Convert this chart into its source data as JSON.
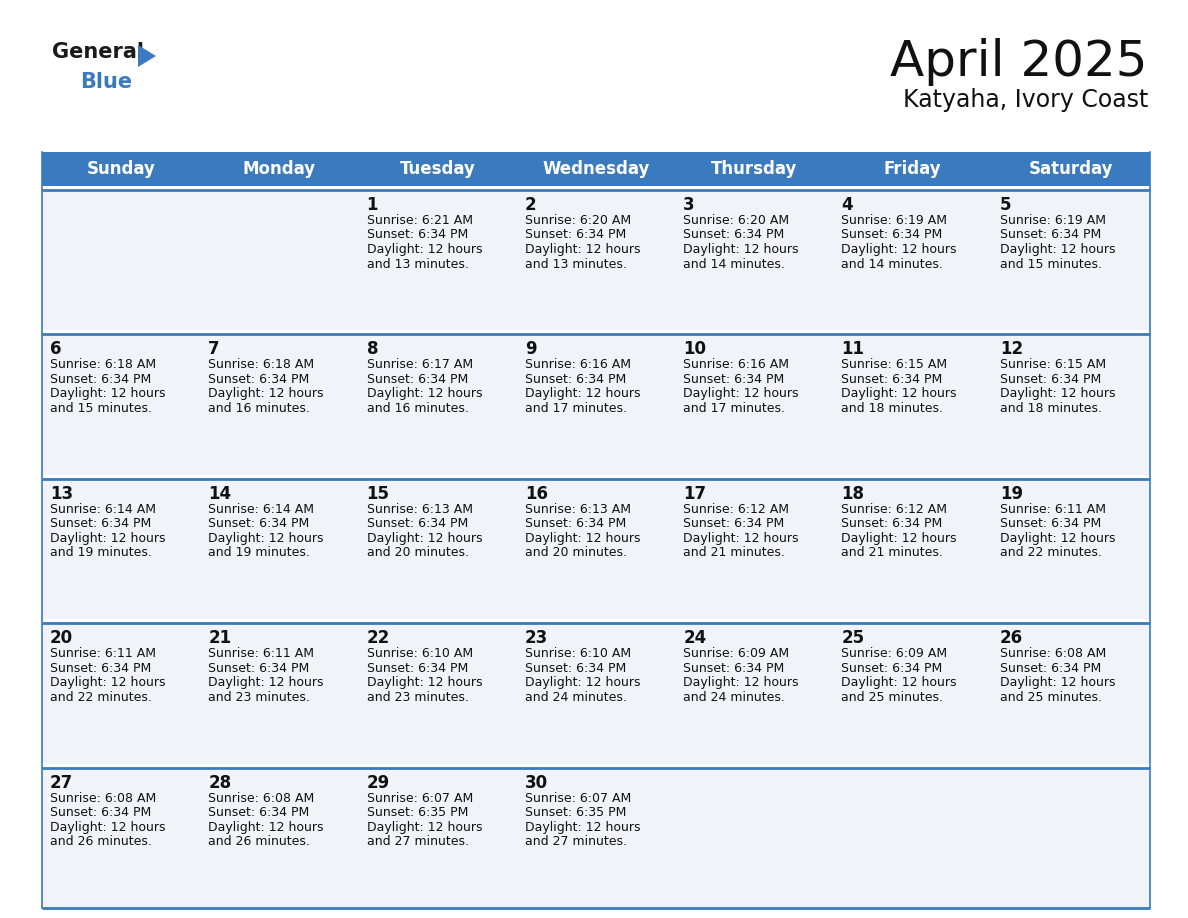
{
  "title": "April 2025",
  "subtitle": "Katyaha, Ivory Coast",
  "header_bg": "#3a7abf",
  "header_text_color": "#ffffff",
  "cell_bg": "#f0f3f7",
  "border_color": "#3a7abf",
  "day_names": [
    "Sunday",
    "Monday",
    "Tuesday",
    "Wednesday",
    "Thursday",
    "Friday",
    "Saturday"
  ],
  "weeks": [
    [
      {
        "day": "",
        "sunrise": "",
        "sunset": "",
        "daylight": ""
      },
      {
        "day": "",
        "sunrise": "",
        "sunset": "",
        "daylight": ""
      },
      {
        "day": "1",
        "sunrise": "6:21 AM",
        "sunset": "6:34 PM",
        "daylight": "12 hours and 13 minutes."
      },
      {
        "day": "2",
        "sunrise": "6:20 AM",
        "sunset": "6:34 PM",
        "daylight": "12 hours and 13 minutes."
      },
      {
        "day": "3",
        "sunrise": "6:20 AM",
        "sunset": "6:34 PM",
        "daylight": "12 hours and 14 minutes."
      },
      {
        "day": "4",
        "sunrise": "6:19 AM",
        "sunset": "6:34 PM",
        "daylight": "12 hours and 14 minutes."
      },
      {
        "day": "5",
        "sunrise": "6:19 AM",
        "sunset": "6:34 PM",
        "daylight": "12 hours and 15 minutes."
      }
    ],
    [
      {
        "day": "6",
        "sunrise": "6:18 AM",
        "sunset": "6:34 PM",
        "daylight": "12 hours and 15 minutes."
      },
      {
        "day": "7",
        "sunrise": "6:18 AM",
        "sunset": "6:34 PM",
        "daylight": "12 hours and 16 minutes."
      },
      {
        "day": "8",
        "sunrise": "6:17 AM",
        "sunset": "6:34 PM",
        "daylight": "12 hours and 16 minutes."
      },
      {
        "day": "9",
        "sunrise": "6:16 AM",
        "sunset": "6:34 PM",
        "daylight": "12 hours and 17 minutes."
      },
      {
        "day": "10",
        "sunrise": "6:16 AM",
        "sunset": "6:34 PM",
        "daylight": "12 hours and 17 minutes."
      },
      {
        "day": "11",
        "sunrise": "6:15 AM",
        "sunset": "6:34 PM",
        "daylight": "12 hours and 18 minutes."
      },
      {
        "day": "12",
        "sunrise": "6:15 AM",
        "sunset": "6:34 PM",
        "daylight": "12 hours and 18 minutes."
      }
    ],
    [
      {
        "day": "13",
        "sunrise": "6:14 AM",
        "sunset": "6:34 PM",
        "daylight": "12 hours and 19 minutes."
      },
      {
        "day": "14",
        "sunrise": "6:14 AM",
        "sunset": "6:34 PM",
        "daylight": "12 hours and 19 minutes."
      },
      {
        "day": "15",
        "sunrise": "6:13 AM",
        "sunset": "6:34 PM",
        "daylight": "12 hours and 20 minutes."
      },
      {
        "day": "16",
        "sunrise": "6:13 AM",
        "sunset": "6:34 PM",
        "daylight": "12 hours and 20 minutes."
      },
      {
        "day": "17",
        "sunrise": "6:12 AM",
        "sunset": "6:34 PM",
        "daylight": "12 hours and 21 minutes."
      },
      {
        "day": "18",
        "sunrise": "6:12 AM",
        "sunset": "6:34 PM",
        "daylight": "12 hours and 21 minutes."
      },
      {
        "day": "19",
        "sunrise": "6:11 AM",
        "sunset": "6:34 PM",
        "daylight": "12 hours and 22 minutes."
      }
    ],
    [
      {
        "day": "20",
        "sunrise": "6:11 AM",
        "sunset": "6:34 PM",
        "daylight": "12 hours and 22 minutes."
      },
      {
        "day": "21",
        "sunrise": "6:11 AM",
        "sunset": "6:34 PM",
        "daylight": "12 hours and 23 minutes."
      },
      {
        "day": "22",
        "sunrise": "6:10 AM",
        "sunset": "6:34 PM",
        "daylight": "12 hours and 23 minutes."
      },
      {
        "day": "23",
        "sunrise": "6:10 AM",
        "sunset": "6:34 PM",
        "daylight": "12 hours and 24 minutes."
      },
      {
        "day": "24",
        "sunrise": "6:09 AM",
        "sunset": "6:34 PM",
        "daylight": "12 hours and 24 minutes."
      },
      {
        "day": "25",
        "sunrise": "6:09 AM",
        "sunset": "6:34 PM",
        "daylight": "12 hours and 25 minutes."
      },
      {
        "day": "26",
        "sunrise": "6:08 AM",
        "sunset": "6:34 PM",
        "daylight": "12 hours and 25 minutes."
      }
    ],
    [
      {
        "day": "27",
        "sunrise": "6:08 AM",
        "sunset": "6:34 PM",
        "daylight": "12 hours and 26 minutes."
      },
      {
        "day": "28",
        "sunrise": "6:08 AM",
        "sunset": "6:34 PM",
        "daylight": "12 hours and 26 minutes."
      },
      {
        "day": "29",
        "sunrise": "6:07 AM",
        "sunset": "6:35 PM",
        "daylight": "12 hours and 27 minutes."
      },
      {
        "day": "30",
        "sunrise": "6:07 AM",
        "sunset": "6:35 PM",
        "daylight": "12 hours and 27 minutes."
      },
      {
        "day": "",
        "sunrise": "",
        "sunset": "",
        "daylight": ""
      },
      {
        "day": "",
        "sunrise": "",
        "sunset": "",
        "daylight": ""
      },
      {
        "day": "",
        "sunrise": "",
        "sunset": "",
        "daylight": ""
      }
    ]
  ],
  "logo_text_general": "General",
  "logo_text_blue": "Blue",
  "logo_triangle_color": "#3a7abf",
  "title_fontsize": 36,
  "subtitle_fontsize": 17,
  "header_fontsize": 12,
  "day_num_fontsize": 12,
  "cell_text_fontsize": 9.0,
  "bg_color": "#ffffff"
}
